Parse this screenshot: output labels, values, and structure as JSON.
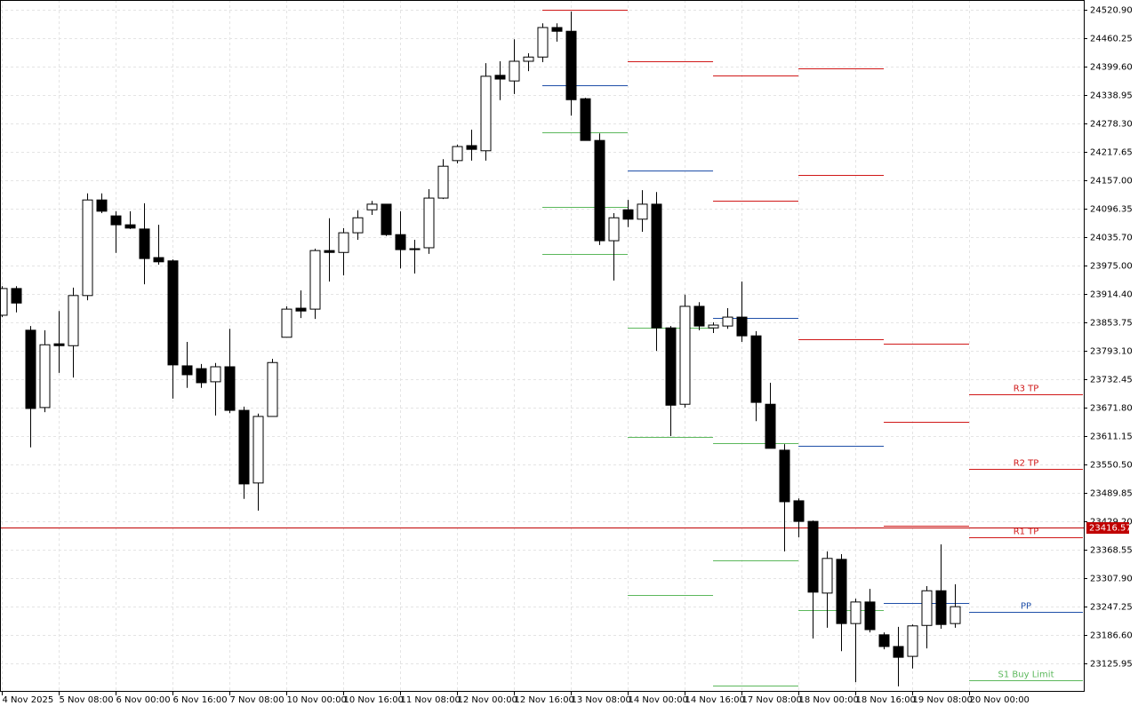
{
  "chart_data": {
    "type": "candlestick",
    "open": [
      23869,
      23926,
      23837,
      23672,
      23808,
      23804,
      23911,
      24115,
      24081,
      24062,
      24053,
      23992,
      23985,
      23761,
      23755,
      23727,
      23759,
      23666,
      23511,
      23653,
      23822,
      23884,
      23882,
      24007,
      24003,
      24045,
      24094,
      24106,
      24041,
      24011,
      24013,
      24119,
      24199,
      24231,
      24220,
      24381,
      24369,
      24411,
      24420,
      24483,
      24475,
      24331,
      24242,
      24028,
      24094,
      24074,
      24106,
      23842,
      23679,
      23888,
      23842,
      23846,
      23865,
      23825,
      23679,
      23581,
      23473,
      23429,
      23276,
      23348,
      23211,
      23257,
      23187,
      23162,
      23141,
      23207,
      23281,
      23211
    ],
    "high": [
      23931,
      23931,
      23846,
      23837,
      23878,
      23928,
      24129,
      24129,
      24091,
      24091,
      24108,
      24062,
      23988,
      23812,
      23765,
      23767,
      23840,
      23674,
      23659,
      23776,
      23888,
      23922,
      24011,
      24076,
      24055,
      24093,
      24113,
      24106,
      24091,
      24030,
      24138,
      24202,
      24233,
      24265,
      24407,
      24411,
      24458,
      24428,
      24492,
      24492,
      24517,
      24333,
      24257,
      24087,
      24115,
      24136,
      24132,
      23846,
      23913,
      23897,
      23854,
      23884,
      23941,
      23835,
      23725,
      23594,
      23478,
      23431,
      23365,
      23359,
      23264,
      23285,
      23192,
      23204,
      23209,
      23291,
      23380,
      23295
    ],
    "low": [
      23865,
      23875,
      23587,
      23662,
      23746,
      23736,
      23901,
      24087,
      24002,
      24053,
      23935,
      23977,
      23691,
      23714,
      23714,
      23655,
      23660,
      23477,
      23452,
      23653,
      23822,
      23863,
      23861,
      23941,
      23954,
      24030,
      24083,
      24038,
      23969,
      23958,
      24000,
      24117,
      24193,
      24199,
      24199,
      24328,
      24341,
      24390,
      24409,
      24453,
      24295,
      24242,
      24019,
      23943,
      24057,
      24047,
      23793,
      23611,
      23672,
      23837,
      23831,
      23840,
      23812,
      23643,
      23585,
      23365,
      23395,
      23179,
      23202,
      23152,
      23086,
      23192,
      23156,
      23077,
      23115,
      23158,
      23200,
      23202
    ],
    "close": [
      23926,
      23895,
      23670,
      23806,
      23804,
      23911,
      24115,
      24091,
      24062,
      24055,
      23990,
      23983,
      23763,
      23742,
      23725,
      23759,
      23666,
      23509,
      23653,
      23768,
      23882,
      23878,
      24007,
      24003,
      24045,
      24077,
      24106,
      24041,
      24009,
      24009,
      24119,
      24187,
      24229,
      24223,
      24379,
      24373,
      24411,
      24420,
      24483,
      24475,
      24329,
      24242,
      24028,
      24077,
      24074,
      24106,
      23842,
      23677,
      23888,
      23846,
      23848,
      23865,
      23825,
      23683,
      23585,
      23471,
      23429,
      23278,
      23350,
      23211,
      23257,
      23198,
      23162,
      23139,
      23206,
      23281,
      23209,
      23247
    ],
    "up_color": "#ffffff",
    "down_color": "#000000",
    "ylim": [
      23065.35,
      24541.75
    ],
    "yticks": [
      {
        "value": 24520.9,
        "label": "24520.90"
      },
      24460.25,
      {
        "value": 24399.6,
        "label": "24399.60"
      },
      24338.95,
      {
        "value": 24278.3,
        "label": "24278.30"
      },
      24217.65,
      {
        "value": 24157,
        "label": "24157.00"
      },
      24096.35,
      {
        "value": 24035.7,
        "label": "24035.70"
      },
      {
        "value": 23975,
        "label": "23975.00"
      },
      {
        "value": 23914.4,
        "label": "23914.40"
      },
      23853.75,
      {
        "value": 23793.1,
        "label": "23793.10"
      },
      23732.45,
      {
        "value": 23671.8,
        "label": "23671.80"
      },
      23611.15,
      {
        "value": 23550.5,
        "label": "23550.50"
      },
      23489.85,
      {
        "value": 23429.2,
        "label": "23429.20"
      },
      23368.55,
      {
        "value": 23307.9,
        "label": "23307.90"
      },
      23247.25,
      {
        "value": 23186.6,
        "label": "23186.60"
      },
      23125.95
    ],
    "xlim": [
      -0.125,
      76.06
    ],
    "xticks": [
      {
        "value": 0,
        "label": "4 Nov 2025"
      },
      {
        "value": 4,
        "label": "5 Nov 08:00"
      },
      {
        "value": 8,
        "label": "6 Nov 00:00"
      },
      {
        "value": 12,
        "label": "6 Nov 16:00"
      },
      {
        "value": 16,
        "label": "7 Nov 08:00"
      },
      {
        "value": 20,
        "label": "10 Nov 00:00"
      },
      {
        "value": 24,
        "label": "10 Nov 16:00"
      },
      {
        "value": 28,
        "label": "11 Nov 08:00"
      },
      {
        "value": 32,
        "label": "12 Nov 00:00"
      },
      {
        "value": 36,
        "label": "12 Nov 16:00"
      },
      {
        "value": 40,
        "label": "13 Nov 08:00"
      },
      {
        "value": 44,
        "label": "14 Nov 00:00"
      },
      {
        "value": 48,
        "label": "14 Nov 16:00"
      },
      {
        "value": 52,
        "label": "17 Nov 08:00"
      },
      {
        "value": 56,
        "label": "18 Nov 00:00"
      },
      {
        "value": 60,
        "label": "18 Nov 16:00"
      },
      {
        "value": 64,
        "label": "19 Nov 08:00"
      },
      {
        "value": 68,
        "label": "20 Nov 00:00"
      }
    ],
    "grid": true,
    "last_price": 23416.57,
    "last_price_color": "#c00000",
    "pivots": [
      {
        "levels": [
          {
            "value": 24521,
            "color": "#d01818"
          },
          {
            "value": 24360,
            "color": "#1f4fa8"
          },
          {
            "value": 24259,
            "color": "#5cb85c"
          },
          {
            "value": 24100,
            "color": "#5cb85c"
          },
          {
            "value": 24000,
            "color": "#5cb85c"
          }
        ]
      },
      {
        "levels": [
          {
            "value": 24411,
            "color": "#d01818"
          },
          {
            "value": 24178,
            "color": "#1f4fa8"
          },
          {
            "value": 23842,
            "color": "#5cb85c"
          },
          {
            "value": 23609,
            "color": "#5cb85c"
          },
          {
            "value": 23272,
            "color": "#5cb85c"
          }
        ]
      },
      {
        "levels": [
          {
            "value": 24381,
            "color": "#d01818"
          },
          {
            "value": 24113,
            "color": "#d01818"
          },
          {
            "value": 23863,
            "color": "#1f4fa8"
          },
          {
            "value": 23596,
            "color": "#5cb85c"
          },
          {
            "value": 23346,
            "color": "#5cb85c"
          },
          {
            "value": 23079,
            "color": "#5cb85c"
          }
        ]
      },
      {
        "levels": [
          {
            "value": 24396,
            "color": "#d01818"
          },
          {
            "value": 24168,
            "color": "#d01818"
          },
          {
            "value": 23818,
            "color": "#d01818"
          },
          {
            "value": 23590,
            "color": "#1f4fa8"
          },
          {
            "value": 23240,
            "color": "#5cb85c"
          }
        ]
      },
      {
        "levels": [
          {
            "value": 23808,
            "color": "#d01818"
          },
          {
            "value": 23641,
            "color": "#d01818"
          },
          {
            "value": 23420,
            "color": "#d01818"
          },
          {
            "value": 23255,
            "color": "#1f4fa8"
          }
        ]
      },
      {
        "levels": [
          {
            "value": 23700,
            "color": "#d01818",
            "label": "R3 TP"
          },
          {
            "value": 23541,
            "color": "#d01818",
            "label": "R2 TP"
          },
          {
            "value": 23395,
            "color": "#d01818",
            "label": "R1 TP"
          },
          {
            "value": 23236,
            "color": "#1f4fa8",
            "label": "PP"
          },
          {
            "value": 23090,
            "color": "#5cb85c",
            "label": "S1 Buy Limit"
          }
        ]
      }
    ]
  }
}
